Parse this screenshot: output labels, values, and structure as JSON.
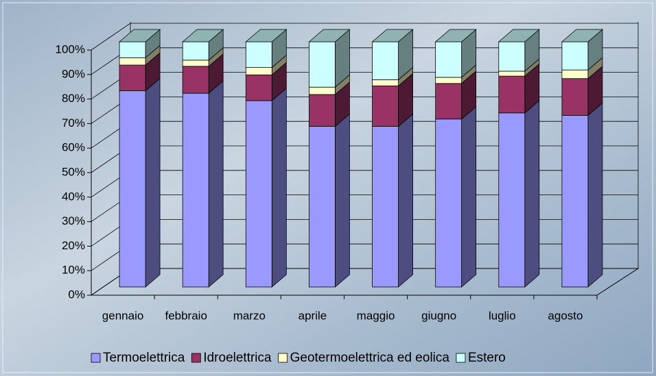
{
  "chart_data": {
    "type": "bar",
    "stacked": true,
    "grid": true,
    "legend": "bottom",
    "categories": [
      "gennaio",
      "febbraio",
      "marzo",
      "aprile",
      "maggio",
      "giugno",
      "luglio",
      "agosto"
    ],
    "series": [
      {
        "name": "Termoelettrica",
        "color": "#9999ff",
        "values": [
          80,
          79,
          76,
          65.5,
          65.5,
          68.5,
          71,
          70
        ]
      },
      {
        "name": "Idroelettrica",
        "color": "#993366",
        "values": [
          10.5,
          11,
          10.5,
          13,
          16.5,
          14.5,
          15,
          15
        ]
      },
      {
        "name": "Geotermoelettrica ed eolica",
        "color": "#ffffcc",
        "values": [
          3,
          2.5,
          3,
          3,
          2.5,
          2.5,
          2,
          3.5
        ]
      },
      {
        "name": "Estero",
        "color": "#ccffff",
        "values": [
          6.5,
          7.5,
          10.5,
          18.5,
          15.5,
          14.5,
          12,
          11.5
        ]
      }
    ],
    "ylim": [
      0,
      100
    ],
    "yticks": [
      {
        "value": 0,
        "label": "0%"
      },
      {
        "value": 10,
        "label": "10%"
      },
      {
        "value": 20,
        "label": "20%"
      },
      {
        "value": 30,
        "label": "30%"
      },
      {
        "value": 40,
        "label": "40%"
      },
      {
        "value": 50,
        "label": "50%"
      },
      {
        "value": 60,
        "label": "60%"
      },
      {
        "value": 70,
        "label": "70%"
      },
      {
        "value": 80,
        "label": "80%"
      },
      {
        "value": 90,
        "label": "90%"
      },
      {
        "value": 100,
        "label": "100%"
      }
    ]
  }
}
